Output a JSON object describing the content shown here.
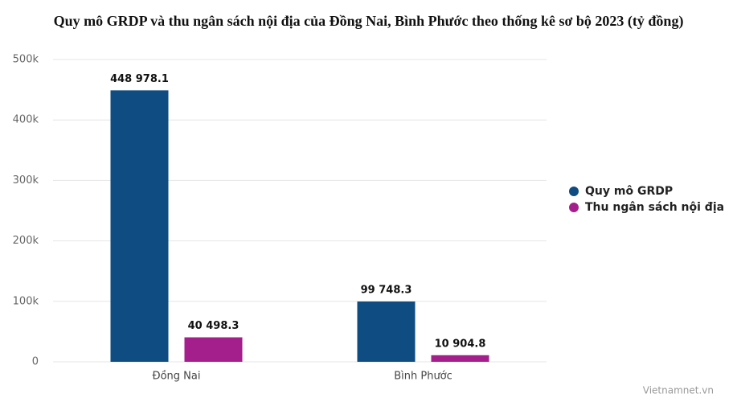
{
  "chart_data": {
    "type": "bar",
    "title": "Quy mô GRDP và thu ngân sách nội địa của Đồng Nai, Bình Phước theo thống kê sơ bộ 2023 (tỷ đồng)",
    "categories": [
      "Đồng Nai",
      "Bình Phước"
    ],
    "series": [
      {
        "name": "Quy mô GRDP",
        "color": "#0f4c81",
        "values": [
          448978.1,
          99748.3
        ],
        "value_labels": [
          "448 978.1",
          "99 748.3"
        ]
      },
      {
        "name": "Thu ngân sách nội địa",
        "color": "#a41e8c",
        "values": [
          40498.3,
          10904.8
        ],
        "value_labels": [
          "40 498.3",
          "10 904.8"
        ]
      }
    ],
    "ylim": [
      0,
      500000
    ],
    "yticks": [
      0,
      {
        "value": 100000,
        "label": "100k"
      },
      {
        "value": 200000,
        "label": "200k"
      },
      {
        "value": 300000,
        "label": "300k"
      },
      {
        "value": 400000,
        "label": "400k"
      },
      {
        "value": 500000,
        "label": "500k"
      }
    ],
    "grid": true,
    "legend": "right",
    "credit": "Vietnamnet.vn"
  }
}
